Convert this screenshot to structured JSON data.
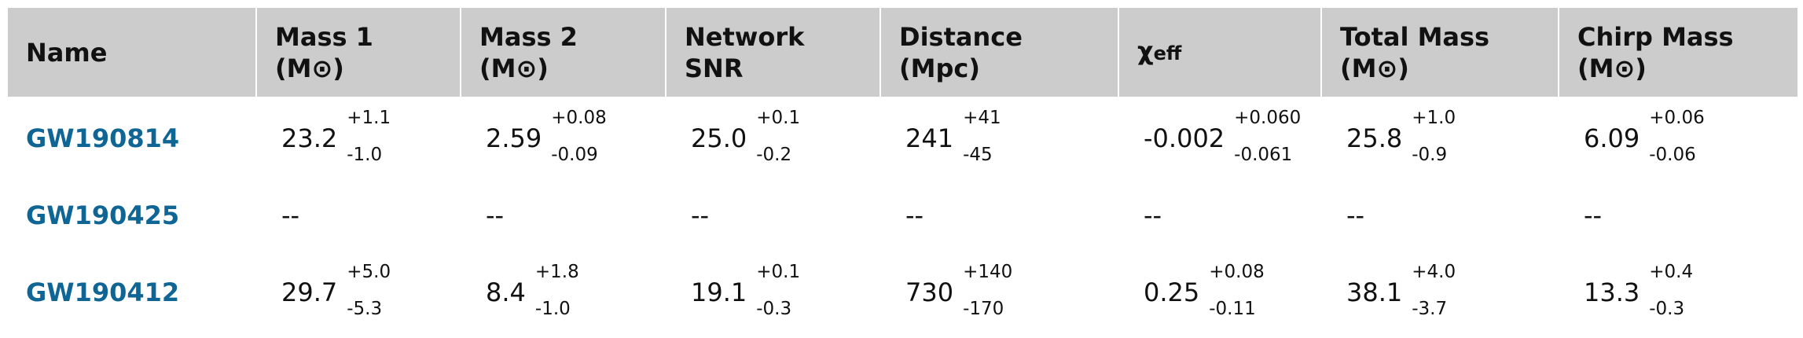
{
  "header": {
    "columns": [
      {
        "lines": [
          "Name"
        ]
      },
      {
        "lines": [
          "Mass 1",
          "(M⊙)"
        ]
      },
      {
        "lines": [
          "Mass 2",
          "(M⊙)"
        ]
      },
      {
        "lines": [
          "Network",
          "SNR"
        ]
      },
      {
        "lines": [
          "Distance",
          "(Mpc)"
        ]
      },
      {
        "symbol": "χ",
        "sub": "eff"
      },
      {
        "lines": [
          "Total Mass",
          "(M⊙)"
        ]
      },
      {
        "lines": [
          "Chirp Mass",
          "(M⊙)"
        ]
      }
    ]
  },
  "rows": [
    {
      "name": "GW190814",
      "cells": [
        {
          "value": "23.2",
          "plus": "+1.1",
          "minus": "-1.0"
        },
        {
          "value": "2.59",
          "plus": "+0.08",
          "minus": "-0.09"
        },
        {
          "value": "25.0",
          "plus": "+0.1",
          "minus": "-0.2"
        },
        {
          "value": "241",
          "plus": "+41",
          "minus": "-45"
        },
        {
          "value": "-0.002",
          "plus": "+0.060",
          "minus": "-0.061"
        },
        {
          "value": "25.8",
          "plus": "+1.0",
          "minus": "-0.9"
        },
        {
          "value": "6.09",
          "plus": "+0.06",
          "minus": "-0.06"
        }
      ]
    },
    {
      "name": "GW190425",
      "cells": [
        "--",
        "--",
        "--",
        "--",
        "--",
        "--",
        "--"
      ]
    },
    {
      "name": "GW190412",
      "cells": [
        {
          "value": "29.7",
          "plus": "+5.0",
          "minus": "-5.3"
        },
        {
          "value": "8.4",
          "plus": "+1.8",
          "minus": "-1.0"
        },
        {
          "value": "19.1",
          "plus": "+0.1",
          "minus": "-0.3"
        },
        {
          "value": "730",
          "plus": "+140",
          "minus": "-170"
        },
        {
          "value": "0.25",
          "plus": "+0.08",
          "minus": "-0.11"
        },
        {
          "value": "38.1",
          "plus": "+4.0",
          "minus": "-3.7"
        },
        {
          "value": "13.3",
          "plus": "+0.4",
          "minus": "-0.3"
        }
      ]
    }
  ]
}
